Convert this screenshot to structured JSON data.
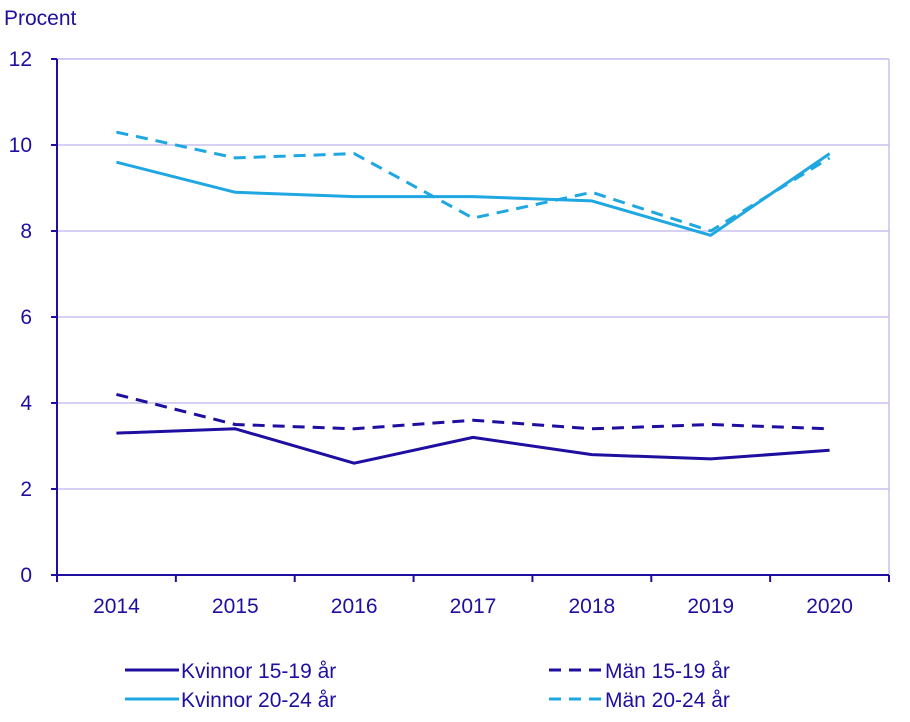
{
  "chart_data": {
    "type": "line",
    "ylabel": "Procent",
    "x": [
      "2014",
      "2015",
      "2016",
      "2017",
      "2018",
      "2019",
      "2020"
    ],
    "ylim": [
      0,
      12
    ],
    "yticks": [
      0,
      2,
      4,
      6,
      8,
      10,
      12
    ],
    "grid": true,
    "legend_position": "bottom",
    "series": [
      {
        "name": "Kvinnor 15-19 år",
        "values": [
          3.3,
          3.4,
          2.6,
          3.2,
          2.8,
          2.7,
          2.9
        ],
        "color": "#1e0fa0",
        "dash": "solid"
      },
      {
        "name": "Män 15-19 år",
        "values": [
          4.2,
          3.5,
          3.4,
          3.6,
          3.4,
          3.5,
          3.4
        ],
        "color": "#1e0fa0",
        "dash": "dashed"
      },
      {
        "name": "Kvinnor 20-24 år",
        "values": [
          9.6,
          8.9,
          8.8,
          8.8,
          8.7,
          7.9,
          9.8
        ],
        "color": "#1ea7e1",
        "dash": "solid"
      },
      {
        "name": "Män 20-24 år",
        "values": [
          10.3,
          9.7,
          9.8,
          8.3,
          8.9,
          8.0,
          9.7
        ],
        "color": "#1ea7e1",
        "dash": "dashed"
      }
    ]
  },
  "colors": {
    "axis": "#1e0fa0",
    "grid": "#c8c2ee"
  }
}
